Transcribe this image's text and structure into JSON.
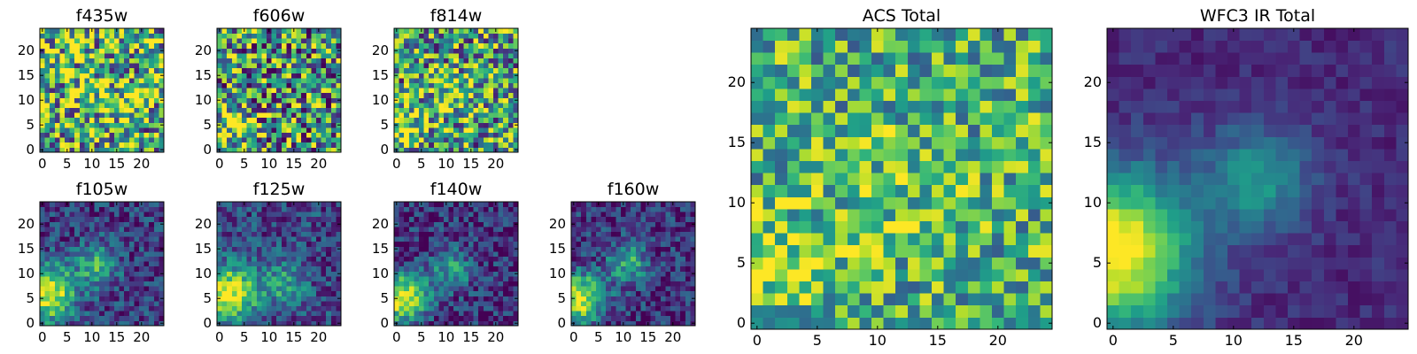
{
  "figure": {
    "background": "#ffffff"
  },
  "colormap": {
    "name": "viridis",
    "stops": [
      "#440154",
      "#482878",
      "#3e4a89",
      "#31688e",
      "#26828e",
      "#1f9e89",
      "#35b779",
      "#6ece58",
      "#b5de2b",
      "#fde725"
    ]
  },
  "chart_data": [
    {
      "type": "heatmap",
      "title": "f435w",
      "x_ticks": [
        0,
        5,
        10,
        15,
        20
      ],
      "y_ticks": [
        0,
        5,
        10,
        15,
        20
      ],
      "xlim": [
        -0.5,
        24.5
      ],
      "ylim": [
        -0.5,
        24.5
      ],
      "grid": false,
      "data": {
        "n": 25,
        "noise": 0.55,
        "base": 0.62,
        "seed": 11,
        "blobs": [
          {
            "x": 18,
            "y": 10,
            "amp": 0.25,
            "sigma": 2.0
          },
          {
            "x": 10,
            "y": 12,
            "amp": 0.12,
            "sigma": 4.0
          }
        ]
      }
    },
    {
      "type": "heatmap",
      "title": "f606w",
      "x_ticks": [
        0,
        5,
        10,
        15,
        20
      ],
      "y_ticks": [
        0,
        5,
        10,
        15,
        20
      ],
      "xlim": [
        -0.5,
        24.5
      ],
      "ylim": [
        -0.5,
        24.5
      ],
      "grid": false,
      "data": {
        "n": 25,
        "noise": 0.55,
        "base": 0.52,
        "seed": 23,
        "blobs": [
          {
            "x": 2,
            "y": 5,
            "amp": 0.35,
            "sigma": 3.0
          }
        ]
      }
    },
    {
      "type": "heatmap",
      "title": "f814w",
      "x_ticks": [
        0,
        5,
        10,
        15,
        20
      ],
      "y_ticks": [
        0,
        5,
        10,
        15,
        20
      ],
      "xlim": [
        -0.5,
        24.5
      ],
      "ylim": [
        -0.5,
        24.5
      ],
      "grid": false,
      "data": {
        "n": 25,
        "noise": 0.5,
        "base": 0.55,
        "seed": 37,
        "blobs": [
          {
            "x": 2,
            "y": 5,
            "amp": 0.3,
            "sigma": 3.0
          },
          {
            "x": 12,
            "y": 11,
            "amp": 0.25,
            "sigma": 3.0
          }
        ]
      }
    },
    {
      "type": "heatmap",
      "title": "f105w",
      "x_ticks": [
        0,
        5,
        10,
        15,
        20
      ],
      "y_ticks": [
        0,
        5,
        10,
        15,
        20
      ],
      "xlim": [
        -0.5,
        24.5
      ],
      "ylim": [
        -0.5,
        24.5
      ],
      "grid": false,
      "data": {
        "n": 25,
        "noise": 0.22,
        "base": 0.18,
        "seed": 41,
        "blobs": [
          {
            "x": 1,
            "y": 6,
            "amp": 0.8,
            "sigma": 4.0
          },
          {
            "x": 11,
            "y": 12,
            "amp": 0.45,
            "sigma": 3.0
          }
        ]
      }
    },
    {
      "type": "heatmap",
      "title": "f125w",
      "x_ticks": [
        0,
        5,
        10,
        15,
        20
      ],
      "y_ticks": [
        0,
        5,
        10,
        15,
        20
      ],
      "xlim": [
        -0.5,
        24.5
      ],
      "ylim": [
        -0.5,
        24.5
      ],
      "grid": false,
      "data": {
        "n": 25,
        "noise": 0.22,
        "base": 0.22,
        "seed": 53,
        "blobs": [
          {
            "x": 2,
            "y": 6,
            "amp": 0.75,
            "sigma": 4.0
          },
          {
            "x": 13,
            "y": 8,
            "amp": 0.35,
            "sigma": 3.0
          }
        ]
      }
    },
    {
      "type": "heatmap",
      "title": "f140w",
      "x_ticks": [
        0,
        5,
        10,
        15,
        20
      ],
      "y_ticks": [
        0,
        5,
        10,
        15,
        20
      ],
      "xlim": [
        -0.5,
        24.5
      ],
      "ylim": [
        -0.5,
        24.5
      ],
      "grid": false,
      "data": {
        "n": 25,
        "noise": 0.22,
        "base": 0.15,
        "seed": 67,
        "blobs": [
          {
            "x": 1,
            "y": 5,
            "amp": 0.85,
            "sigma": 3.5
          },
          {
            "x": 11,
            "y": 11,
            "amp": 0.4,
            "sigma": 3.0
          }
        ]
      }
    },
    {
      "type": "heatmap",
      "title": "f160w",
      "x_ticks": [
        0,
        5,
        10,
        15,
        20
      ],
      "y_ticks": [
        0,
        5,
        10,
        15,
        20
      ],
      "xlim": [
        -0.5,
        24.5
      ],
      "ylim": [
        -0.5,
        24.5
      ],
      "grid": false,
      "data": {
        "n": 25,
        "noise": 0.22,
        "base": 0.15,
        "seed": 79,
        "blobs": [
          {
            "x": 1,
            "y": 5,
            "amp": 0.85,
            "sigma": 3.5
          },
          {
            "x": 11,
            "y": 12,
            "amp": 0.45,
            "sigma": 3.0
          }
        ]
      }
    },
    {
      "type": "heatmap",
      "title": "ACS Total",
      "x_ticks": [
        0,
        5,
        10,
        15,
        20
      ],
      "y_ticks": [
        0,
        5,
        10,
        15,
        20
      ],
      "xlim": [
        -0.5,
        24.5
      ],
      "ylim": [
        -0.5,
        24.5
      ],
      "grid": false,
      "data": {
        "n": 25,
        "noise": 0.35,
        "base": 0.62,
        "seed": 97,
        "blobs": [
          {
            "x": 2,
            "y": 5,
            "amp": 0.25,
            "sigma": 3.0
          },
          {
            "x": 11,
            "y": 11,
            "amp": 0.1,
            "sigma": 4.0
          }
        ]
      }
    },
    {
      "type": "heatmap",
      "title": "WFC3 IR Total",
      "x_ticks": [
        0,
        5,
        10,
        15,
        20
      ],
      "y_ticks": [
        0,
        5,
        10,
        15,
        20
      ],
      "xlim": [
        -0.5,
        24.5
      ],
      "ylim": [
        -0.5,
        24.5
      ],
      "grid": false,
      "data": {
        "n": 25,
        "noise": 0.08,
        "base": 0.12,
        "seed": 113,
        "blobs": [
          {
            "x": 0,
            "y": 6,
            "amp": 0.95,
            "sigma": 4.5
          },
          {
            "x": 12,
            "y": 12,
            "amp": 0.4,
            "sigma": 3.0
          }
        ]
      }
    }
  ]
}
